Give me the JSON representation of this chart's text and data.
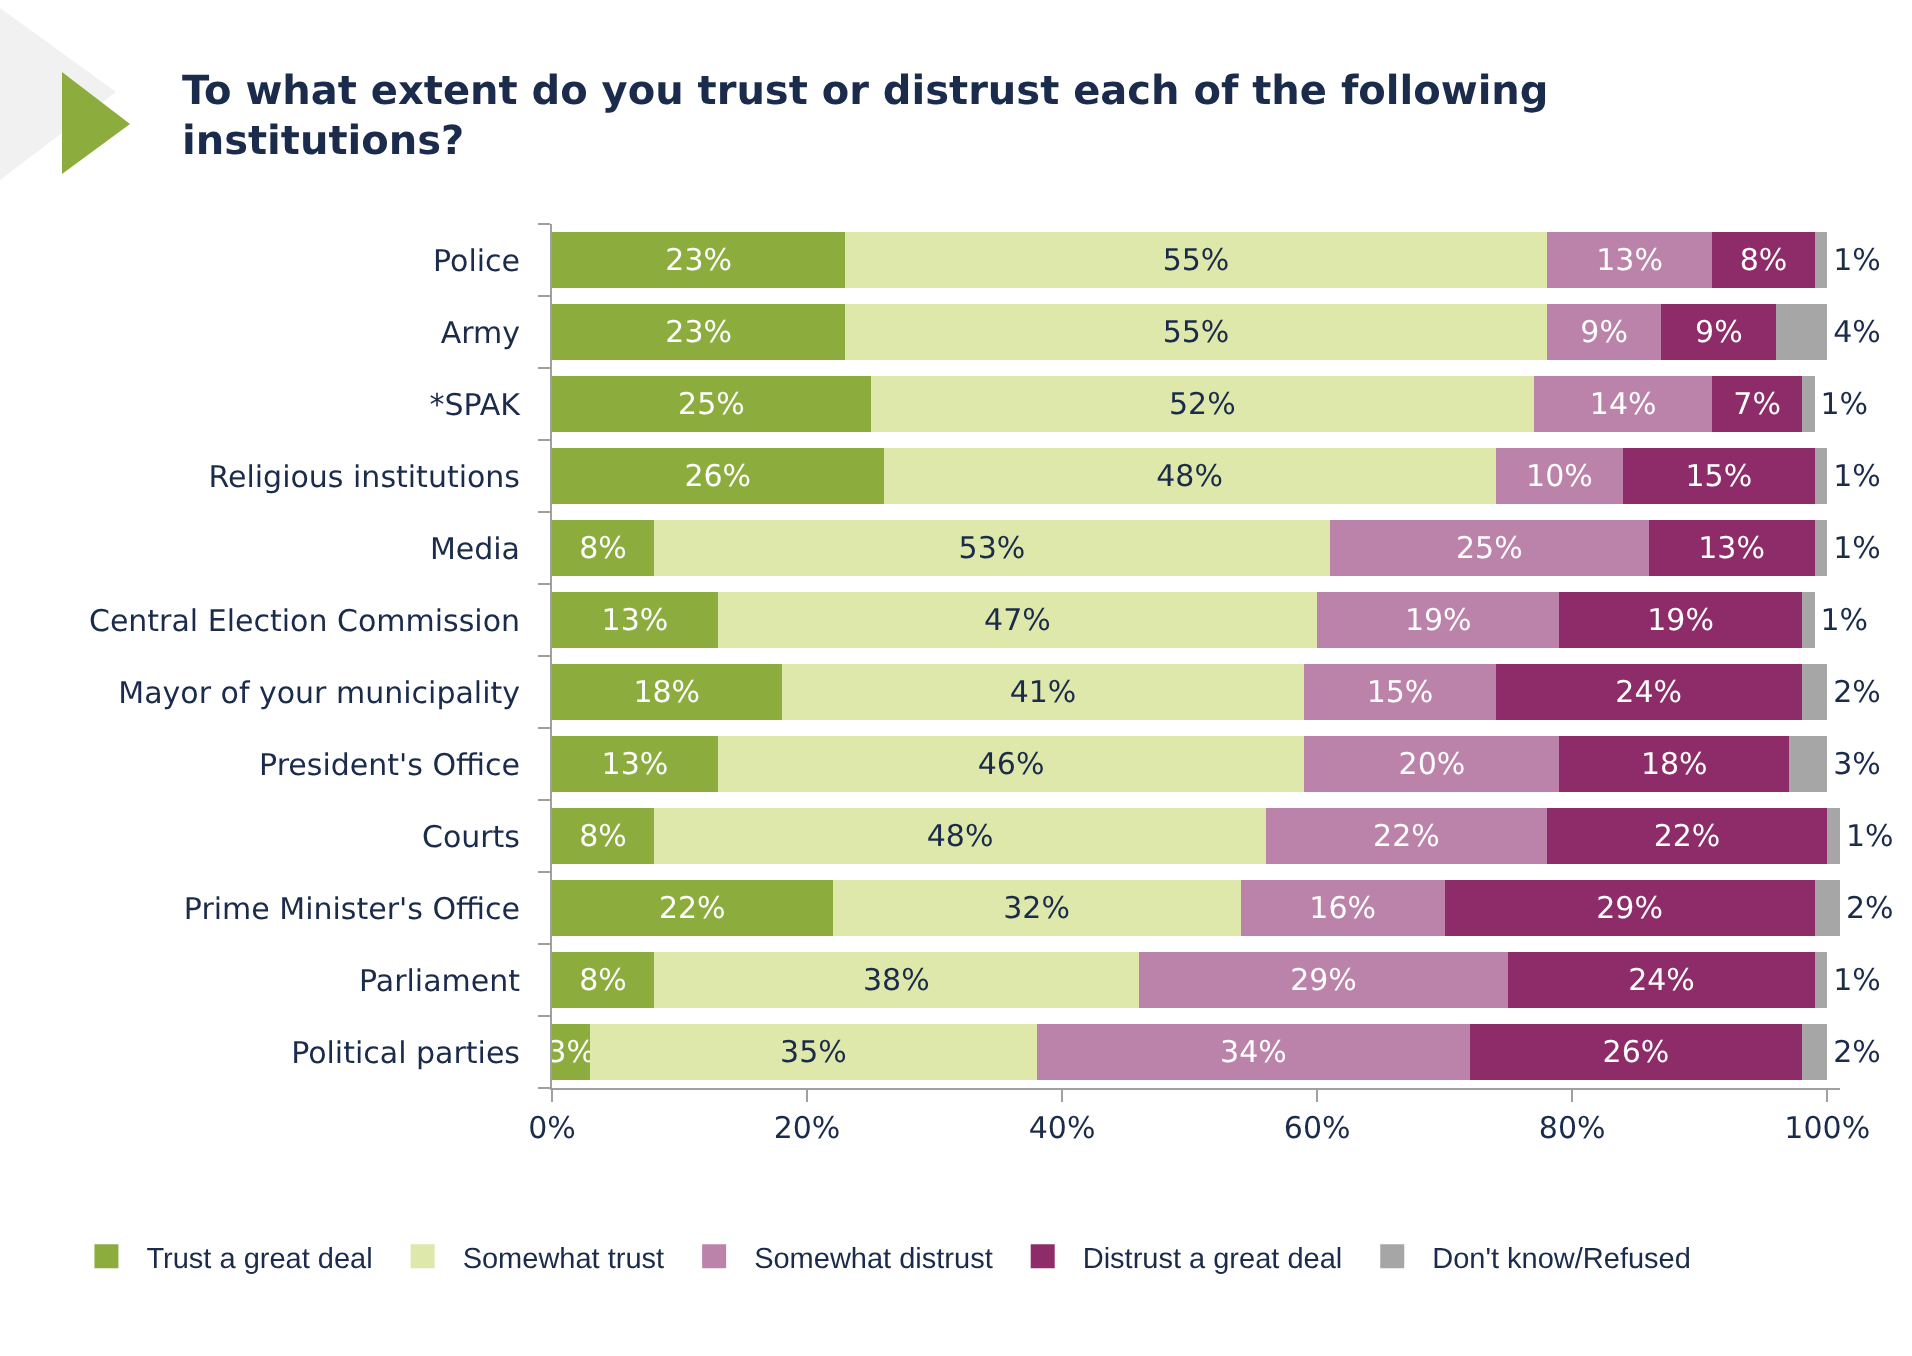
{
  "chart_data": {
    "type": "bar",
    "orientation": "horizontal",
    "stacked": true,
    "title": "To what extent do you trust or distrust each of the following institutions?",
    "categories": [
      "Police",
      "Army",
      "*SPAK",
      "Religious institutions",
      "Media",
      "Central Election Commission",
      "Mayor of your municipality",
      "President's Office",
      "Courts",
      "Prime Minister's Office",
      "Parliament",
      "Political parties"
    ],
    "series": [
      {
        "name": "Trust a great deal",
        "color": "#8cad3e",
        "values": [
          23,
          23,
          25,
          26,
          8,
          13,
          18,
          13,
          8,
          22,
          8,
          3
        ],
        "value_labels": [
          "23%",
          "23%",
          "25%",
          "26%",
          "8%",
          "13%",
          "18%",
          "13%",
          "8%",
          "22%",
          "8%",
          "3%"
        ]
      },
      {
        "name": "Somewhat trust",
        "color": "#dde8aa",
        "values": [
          55,
          55,
          52,
          48,
          53,
          47,
          41,
          46,
          48,
          32,
          38,
          35
        ],
        "value_labels": [
          "55%",
          "55%",
          "52%",
          "48%",
          "53%",
          "47%",
          "41%",
          "46%",
          "48%",
          "32%",
          "38%",
          "35%"
        ]
      },
      {
        "name": "Somewhat distrust",
        "color": "#bb83aa",
        "values": [
          13,
          9,
          14,
          10,
          25,
          19,
          15,
          20,
          22,
          16,
          29,
          34
        ],
        "value_labels": [
          "13%",
          "9%",
          "14%",
          "10%",
          "25%",
          "19%",
          "15%",
          "20%",
          "22%",
          "16%",
          "29%",
          "34%"
        ]
      },
      {
        "name": "Distrust a great deal",
        "color": "#8e2c69",
        "values": [
          8,
          9,
          7,
          15,
          13,
          19,
          24,
          18,
          22,
          29,
          24,
          26
        ],
        "value_labels": [
          "8%",
          "9%",
          "7%",
          "15%",
          "13%",
          "19%",
          "24%",
          "18%",
          "22%",
          "29%",
          "24%",
          "26%"
        ]
      },
      {
        "name": "Don't know/Refused",
        "color": "#a6a6a6",
        "values": [
          1,
          4,
          1,
          1,
          1,
          1,
          2,
          3,
          1,
          2,
          1,
          2
        ],
        "value_labels": [
          "1%",
          "4%",
          "1%",
          "1%",
          "1%",
          "1%",
          "2%",
          "3%",
          "1%",
          "2%",
          "1%",
          "2%"
        ]
      }
    ],
    "xlim": [
      0,
      101
    ],
    "xticks": [
      {
        "value": 0,
        "label": "0%"
      },
      {
        "value": 20,
        "label": "20%"
      },
      {
        "value": 40,
        "label": "40%"
      },
      {
        "value": 60,
        "label": "60%"
      },
      {
        "value": 80,
        "label": "80%"
      },
      {
        "value": 100,
        "label": "100%"
      }
    ],
    "legend": "bottom"
  }
}
